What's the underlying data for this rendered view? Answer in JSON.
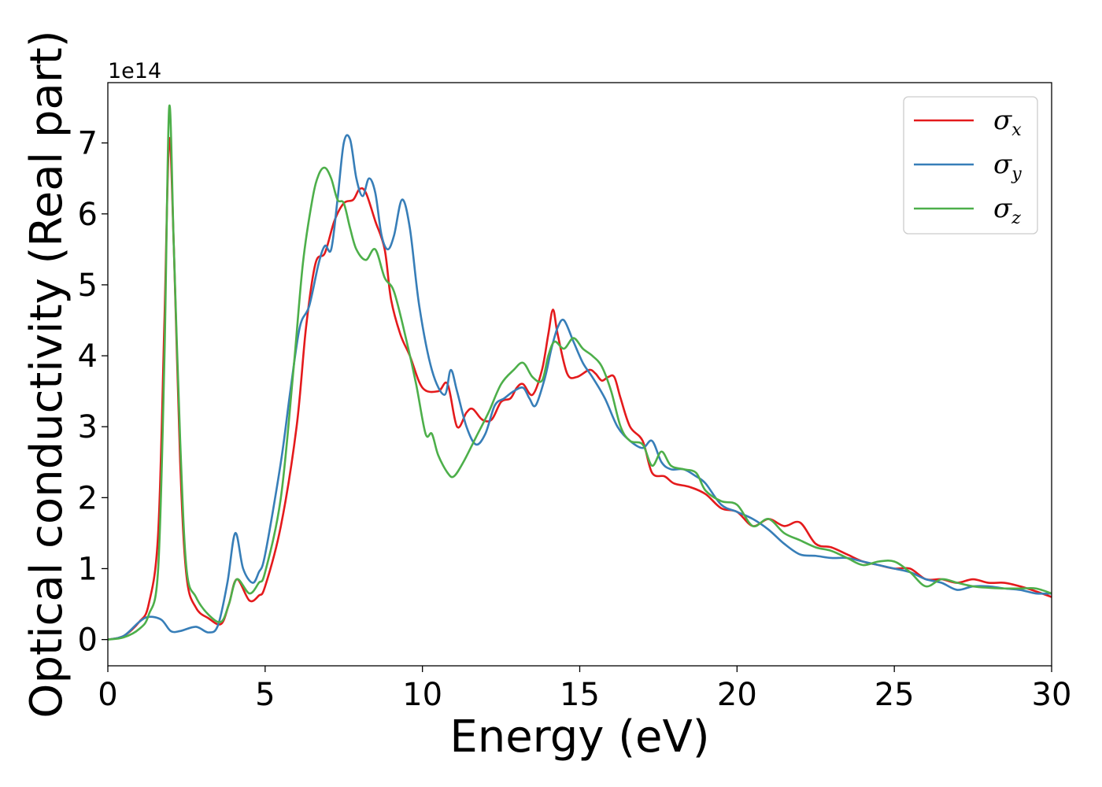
{
  "chart_data": {
    "type": "line",
    "title": "",
    "xlabel": "Energy (eV)",
    "ylabel": "Optical conductivity (Real part)",
    "y_offset_label": "1e14",
    "xlim": [
      0,
      30
    ],
    "ylim": [
      -0.37,
      7.85
    ],
    "xticks": [
      0,
      5,
      10,
      15,
      20,
      25,
      30
    ],
    "xtick_labels": [
      "0",
      "5",
      "10",
      "15",
      "20",
      "25",
      "30"
    ],
    "yticks": [
      0,
      1,
      2,
      3,
      4,
      5,
      6,
      7
    ],
    "ytick_labels": [
      "0",
      "1",
      "2",
      "3",
      "4",
      "5",
      "6",
      "7"
    ],
    "grid": false,
    "legend_position": "top-right",
    "series": [
      {
        "name": "σx",
        "legend_symbol": "σ",
        "legend_subscript": "x",
        "color": "#e41a1c",
        "x": [
          0,
          0.5,
          1.0,
          1.3,
          1.6,
          1.8,
          1.95,
          2.1,
          2.3,
          2.5,
          2.8,
          3.2,
          3.6,
          3.85,
          4.1,
          4.5,
          4.8,
          5.0,
          5.5,
          6.0,
          6.3,
          6.6,
          6.9,
          7.2,
          7.5,
          7.8,
          8.0,
          8.2,
          8.5,
          8.8,
          9.0,
          9.3,
          9.6,
          10.0,
          10.5,
          10.8,
          11.1,
          11.4,
          11.6,
          11.9,
          12.2,
          12.5,
          12.8,
          13.0,
          13.2,
          13.5,
          13.8,
          14.0,
          14.15,
          14.3,
          14.6,
          14.9,
          15.3,
          15.5,
          15.7,
          15.9,
          16.1,
          16.3,
          16.6,
          17.0,
          17.3,
          17.7,
          18.0,
          18.5,
          19.0,
          19.5,
          20.0,
          20.5,
          21.0,
          21.5,
          22.0,
          22.5,
          23.0,
          23.5,
          24.0,
          24.5,
          25.0,
          25.5,
          26.0,
          26.5,
          27.0,
          27.5,
          28.0,
          28.5,
          29.0,
          29.5,
          30.0
        ],
        "values": [
          0.0,
          0.05,
          0.25,
          0.5,
          1.5,
          4.5,
          7.05,
          5.5,
          2.5,
          0.9,
          0.45,
          0.3,
          0.22,
          0.5,
          0.85,
          0.55,
          0.62,
          0.75,
          1.6,
          3.0,
          4.4,
          5.3,
          5.45,
          5.9,
          6.15,
          6.2,
          6.35,
          6.3,
          5.9,
          5.5,
          4.8,
          4.3,
          4.0,
          3.55,
          3.5,
          3.6,
          3.0,
          3.2,
          3.25,
          3.1,
          3.1,
          3.35,
          3.4,
          3.55,
          3.6,
          3.45,
          3.8,
          4.3,
          4.65,
          4.3,
          3.75,
          3.7,
          3.8,
          3.75,
          3.65,
          3.7,
          3.7,
          3.4,
          3.0,
          2.8,
          2.35,
          2.3,
          2.2,
          2.15,
          2.05,
          1.85,
          1.8,
          1.6,
          1.7,
          1.6,
          1.65,
          1.35,
          1.3,
          1.2,
          1.1,
          1.05,
          1.0,
          1.0,
          0.85,
          0.85,
          0.8,
          0.85,
          0.8,
          0.8,
          0.75,
          0.68,
          0.6
        ]
      },
      {
        "name": "σy",
        "legend_symbol": "σ",
        "legend_subscript": "y",
        "color": "#377eb8",
        "x": [
          0,
          0.5,
          1.0,
          1.3,
          1.7,
          2.0,
          2.3,
          2.8,
          3.2,
          3.5,
          3.8,
          4.05,
          4.3,
          4.6,
          4.8,
          5.0,
          5.5,
          5.8,
          6.1,
          6.4,
          6.7,
          6.9,
          7.1,
          7.3,
          7.5,
          7.7,
          7.9,
          8.1,
          8.3,
          8.5,
          8.7,
          8.9,
          9.1,
          9.35,
          9.6,
          9.9,
          10.3,
          10.7,
          10.9,
          11.1,
          11.4,
          11.7,
          12.0,
          12.3,
          12.6,
          12.9,
          13.2,
          13.4,
          13.6,
          13.9,
          14.1,
          14.3,
          14.5,
          14.8,
          15.1,
          15.4,
          15.8,
          16.2,
          16.6,
          17.0,
          17.3,
          17.6,
          17.9,
          18.3,
          18.7,
          19.0,
          19.5,
          20.0,
          20.5,
          21.0,
          21.5,
          22.0,
          22.5,
          23.0,
          23.5,
          24.0,
          24.5,
          25.0,
          25.5,
          26.0,
          26.5,
          27.0,
          27.5,
          28.0,
          28.5,
          29.0,
          29.5,
          30.0
        ],
        "values": [
          0.0,
          0.05,
          0.25,
          0.32,
          0.28,
          0.12,
          0.12,
          0.18,
          0.1,
          0.2,
          0.8,
          1.5,
          1.0,
          0.8,
          0.95,
          1.2,
          2.5,
          3.5,
          4.4,
          4.7,
          5.3,
          5.55,
          5.5,
          6.2,
          7.0,
          7.05,
          6.5,
          6.25,
          6.5,
          6.3,
          5.7,
          5.5,
          5.7,
          6.2,
          5.8,
          4.7,
          3.8,
          3.45,
          3.8,
          3.5,
          3.0,
          2.75,
          2.9,
          3.3,
          3.4,
          3.5,
          3.55,
          3.4,
          3.3,
          3.7,
          4.1,
          4.4,
          4.5,
          4.2,
          3.9,
          3.7,
          3.4,
          3.0,
          2.8,
          2.7,
          2.8,
          2.5,
          2.4,
          2.4,
          2.3,
          2.2,
          1.9,
          1.8,
          1.7,
          1.55,
          1.35,
          1.2,
          1.18,
          1.15,
          1.15,
          1.1,
          1.05,
          1.0,
          0.95,
          0.85,
          0.8,
          0.7,
          0.75,
          0.75,
          0.72,
          0.7,
          0.65,
          0.65
        ]
      },
      {
        "name": "σz",
        "legend_symbol": "σ",
        "legend_subscript": "z",
        "color": "#4daf4a",
        "x": [
          0,
          0.5,
          1.0,
          1.3,
          1.6,
          1.8,
          1.95,
          2.1,
          2.3,
          2.5,
          2.8,
          3.2,
          3.6,
          3.85,
          4.1,
          4.5,
          4.8,
          5.0,
          5.5,
          5.9,
          6.2,
          6.5,
          6.7,
          6.9,
          7.1,
          7.3,
          7.5,
          7.7,
          7.9,
          8.2,
          8.5,
          8.8,
          9.1,
          9.5,
          9.8,
          10.1,
          10.3,
          10.5,
          10.8,
          11.0,
          11.3,
          11.7,
          12.1,
          12.5,
          12.9,
          13.2,
          13.5,
          13.8,
          14.0,
          14.2,
          14.5,
          14.8,
          15.1,
          15.4,
          15.7,
          16.0,
          16.3,
          16.6,
          17.0,
          17.3,
          17.6,
          17.9,
          18.3,
          18.7,
          19.0,
          19.5,
          20.0,
          20.5,
          21.0,
          21.5,
          22.0,
          22.5,
          23.0,
          23.5,
          24.0,
          24.5,
          25.0,
          25.5,
          26.0,
          26.5,
          27.0,
          27.5,
          28.0,
          28.5,
          29.0,
          29.5,
          30.0
        ],
        "values": [
          0.0,
          0.03,
          0.15,
          0.35,
          1.0,
          4.0,
          7.5,
          5.5,
          2.8,
          1.0,
          0.6,
          0.35,
          0.25,
          0.5,
          0.85,
          0.65,
          0.8,
          0.95,
          2.0,
          3.8,
          5.3,
          6.2,
          6.55,
          6.65,
          6.5,
          6.2,
          6.15,
          5.8,
          5.5,
          5.35,
          5.5,
          5.1,
          4.9,
          4.2,
          3.6,
          2.9,
          2.9,
          2.6,
          2.35,
          2.3,
          2.5,
          2.85,
          3.2,
          3.6,
          3.8,
          3.9,
          3.7,
          3.65,
          4.0,
          4.2,
          4.1,
          4.25,
          4.1,
          4.0,
          3.85,
          3.5,
          3.0,
          2.8,
          2.75,
          2.45,
          2.65,
          2.45,
          2.4,
          2.35,
          2.1,
          1.95,
          1.9,
          1.6,
          1.7,
          1.5,
          1.4,
          1.3,
          1.25,
          1.15,
          1.05,
          1.1,
          1.1,
          0.95,
          0.75,
          0.85,
          0.8,
          0.75,
          0.73,
          0.72,
          0.72,
          0.72,
          0.65
        ]
      }
    ]
  }
}
